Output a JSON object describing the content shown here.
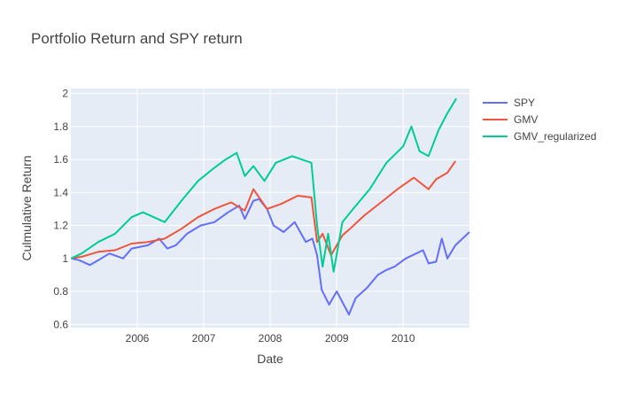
{
  "chart_data": {
    "type": "line",
    "title": "Portfolio Return and SPY return",
    "xlabel": "Date",
    "ylabel": "Culmulative Return",
    "x_ticks": [
      "2006",
      "2007",
      "2008",
      "2009",
      "2010"
    ],
    "y_ticks": [
      "0.6",
      "0.8",
      "1",
      "1.2",
      "1.4",
      "1.6",
      "1.8",
      "2"
    ],
    "xlim": [
      "2005-01-01",
      "2010-12-31"
    ],
    "ylim": [
      0.58,
      2.03
    ],
    "grid": true,
    "legend_position": "right",
    "background": "#E5ECF6",
    "series": [
      {
        "name": "SPY",
        "color": "#636EFA",
        "points": [
          [
            "2005-01-03",
            1.0
          ],
          [
            "2005-02-15",
            0.99
          ],
          [
            "2005-04-15",
            0.96
          ],
          [
            "2005-06-01",
            0.99
          ],
          [
            "2005-08-01",
            1.03
          ],
          [
            "2005-10-15",
            1.0
          ],
          [
            "2005-12-01",
            1.06
          ],
          [
            "2006-03-01",
            1.08
          ],
          [
            "2006-05-01",
            1.12
          ],
          [
            "2006-06-15",
            1.06
          ],
          [
            "2006-08-01",
            1.08
          ],
          [
            "2006-10-01",
            1.15
          ],
          [
            "2006-12-15",
            1.2
          ],
          [
            "2007-03-01",
            1.22
          ],
          [
            "2007-05-15",
            1.28
          ],
          [
            "2007-07-15",
            1.32
          ],
          [
            "2007-08-15",
            1.24
          ],
          [
            "2007-10-01",
            1.35
          ],
          [
            "2007-11-01",
            1.36
          ],
          [
            "2007-12-15",
            1.3
          ],
          [
            "2008-01-20",
            1.2
          ],
          [
            "2008-03-15",
            1.16
          ],
          [
            "2008-05-15",
            1.22
          ],
          [
            "2008-07-15",
            1.1
          ],
          [
            "2008-08-20",
            1.12
          ],
          [
            "2008-09-15",
            1.02
          ],
          [
            "2008-10-10",
            0.81
          ],
          [
            "2008-11-20",
            0.72
          ],
          [
            "2009-01-01",
            0.8
          ],
          [
            "2009-03-09",
            0.66
          ],
          [
            "2009-04-15",
            0.76
          ],
          [
            "2009-06-15",
            0.82
          ],
          [
            "2009-08-15",
            0.9
          ],
          [
            "2009-10-01",
            0.93
          ],
          [
            "2009-11-15",
            0.95
          ],
          [
            "2010-01-15",
            1.0
          ],
          [
            "2010-04-20",
            1.05
          ],
          [
            "2010-05-20",
            0.97
          ],
          [
            "2010-07-01",
            0.98
          ],
          [
            "2010-08-01",
            1.12
          ],
          [
            "2010-09-01",
            1.0
          ],
          [
            "2010-10-15",
            1.08
          ],
          [
            "2010-12-31",
            1.16
          ]
        ]
      },
      {
        "name": "GMV",
        "color": "#EF553B",
        "points": [
          [
            "2005-01-03",
            1.0
          ],
          [
            "2005-03-01",
            1.01
          ],
          [
            "2005-06-01",
            1.04
          ],
          [
            "2005-09-01",
            1.05
          ],
          [
            "2005-12-01",
            1.09
          ],
          [
            "2006-03-01",
            1.1
          ],
          [
            "2006-06-01",
            1.12
          ],
          [
            "2006-09-01",
            1.18
          ],
          [
            "2006-12-01",
            1.25
          ],
          [
            "2007-03-01",
            1.3
          ],
          [
            "2007-06-01",
            1.34
          ],
          [
            "2007-08-15",
            1.29
          ],
          [
            "2007-10-01",
            1.42
          ],
          [
            "2007-12-15",
            1.3
          ],
          [
            "2008-03-01",
            1.33
          ],
          [
            "2008-06-01",
            1.38
          ],
          [
            "2008-08-15",
            1.37
          ],
          [
            "2008-09-15",
            1.1
          ],
          [
            "2008-10-15",
            1.15
          ],
          [
            "2008-12-01",
            1.02
          ],
          [
            "2009-02-01",
            1.14
          ],
          [
            "2009-03-15",
            1.18
          ],
          [
            "2009-06-01",
            1.26
          ],
          [
            "2009-09-01",
            1.34
          ],
          [
            "2009-12-01",
            1.42
          ],
          [
            "2010-03-01",
            1.49
          ],
          [
            "2010-05-20",
            1.42
          ],
          [
            "2010-07-01",
            1.48
          ],
          [
            "2010-09-01",
            1.52
          ],
          [
            "2010-10-15",
            1.59
          ]
        ]
      },
      {
        "name": "GMV_regularized",
        "color": "#00CC96",
        "points": [
          [
            "2005-01-03",
            1.0
          ],
          [
            "2005-03-01",
            1.03
          ],
          [
            "2005-06-01",
            1.1
          ],
          [
            "2005-09-01",
            1.15
          ],
          [
            "2005-12-01",
            1.25
          ],
          [
            "2006-02-01",
            1.28
          ],
          [
            "2006-06-01",
            1.22
          ],
          [
            "2006-09-01",
            1.35
          ],
          [
            "2006-12-01",
            1.47
          ],
          [
            "2007-03-01",
            1.55
          ],
          [
            "2007-05-01",
            1.6
          ],
          [
            "2007-07-01",
            1.64
          ],
          [
            "2007-08-15",
            1.5
          ],
          [
            "2007-10-01",
            1.56
          ],
          [
            "2007-12-01",
            1.47
          ],
          [
            "2008-02-01",
            1.58
          ],
          [
            "2008-05-01",
            1.62
          ],
          [
            "2008-08-15",
            1.58
          ],
          [
            "2008-09-15",
            1.2
          ],
          [
            "2008-10-15",
            0.95
          ],
          [
            "2008-11-15",
            1.15
          ],
          [
            "2008-12-15",
            0.92
          ],
          [
            "2009-02-01",
            1.22
          ],
          [
            "2009-04-01",
            1.3
          ],
          [
            "2009-07-01",
            1.42
          ],
          [
            "2009-10-01",
            1.58
          ],
          [
            "2010-01-01",
            1.68
          ],
          [
            "2010-02-15",
            1.8
          ],
          [
            "2010-04-01",
            1.65
          ],
          [
            "2010-05-20",
            1.62
          ],
          [
            "2010-07-15",
            1.78
          ],
          [
            "2010-09-01",
            1.88
          ],
          [
            "2010-10-20",
            1.97
          ]
        ]
      }
    ]
  }
}
